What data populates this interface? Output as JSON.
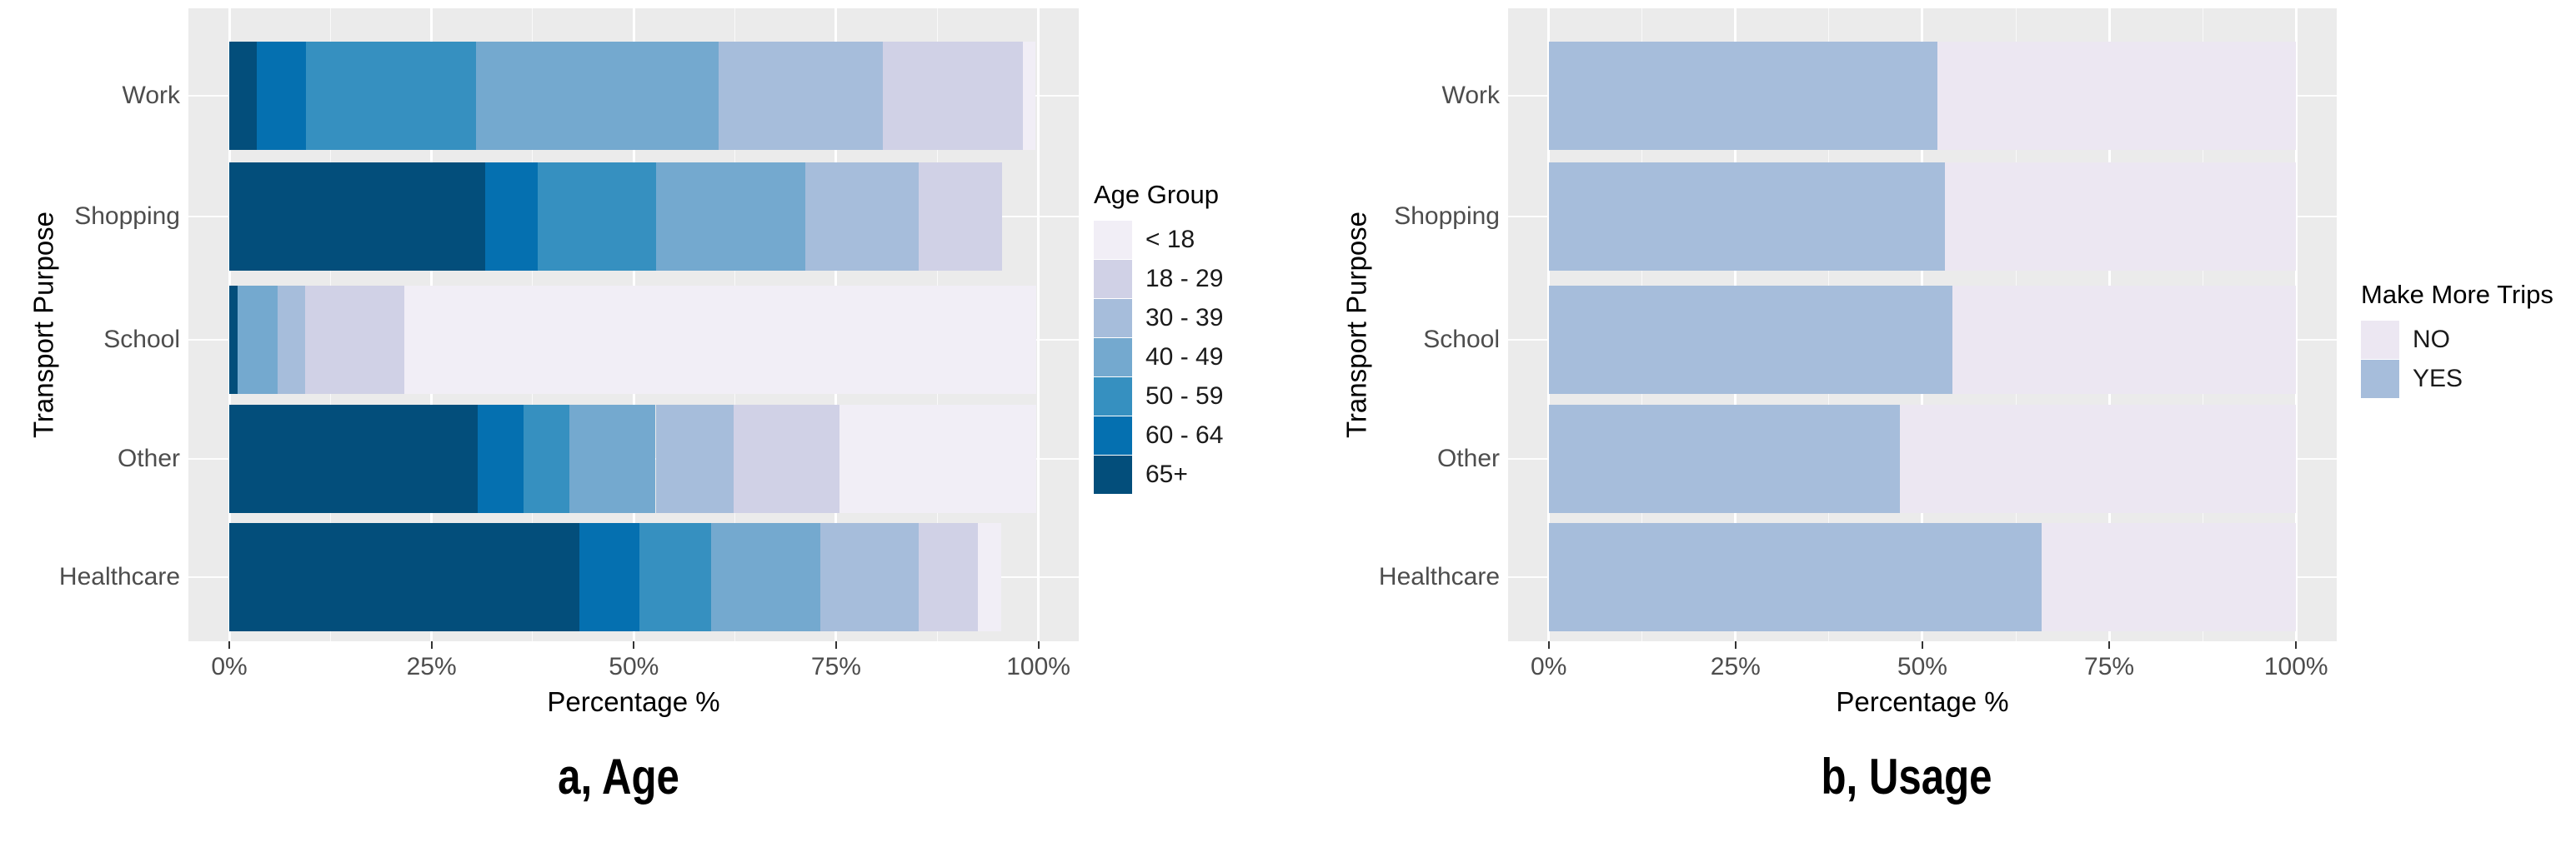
{
  "figure": {
    "captions": {
      "a": "a, Age",
      "b": "b, Usage"
    }
  },
  "chart_data": [
    {
      "id": "age",
      "type": "bar",
      "subtype": "stacked-horizontal",
      "caption": "a, Age",
      "xlabel": "Percentage %",
      "ylabel": "Transport Purpose",
      "xlim": [
        0,
        100
      ],
      "x_ticks": [
        {
          "value": 0,
          "label": "0%"
        },
        {
          "value": 25,
          "label": "25%"
        },
        {
          "value": 50,
          "label": "50%"
        },
        {
          "value": 75,
          "label": "75%"
        },
        {
          "value": 100,
          "label": "100%"
        }
      ],
      "grid": true,
      "categories": [
        "Work",
        "Shopping",
        "School",
        "Other",
        "Healthcare"
      ],
      "series": [
        {
          "name": "65+",
          "color": "#034E7B",
          "values": [
            3.4,
            31.6,
            1.0,
            30.7,
            43.3
          ]
        },
        {
          "name": "60 - 64",
          "color": "#0570B0",
          "values": [
            6.1,
            6.5,
            0.0,
            5.7,
            7.4
          ]
        },
        {
          "name": "50 - 59",
          "color": "#3690C0",
          "values": [
            21.0,
            14.6,
            0.0,
            5.6,
            8.8
          ]
        },
        {
          "name": "40 - 49",
          "color": "#74A9CF",
          "values": [
            30.0,
            18.5,
            5.0,
            10.7,
            13.5
          ]
        },
        {
          "name": "30 - 39",
          "color": "#A6BDDB",
          "values": [
            20.3,
            14.0,
            3.4,
            9.6,
            12.2
          ]
        },
        {
          "name": "18 - 29",
          "color": "#D0D1E6",
          "values": [
            17.3,
            10.3,
            12.2,
            13.1,
            7.3
          ]
        },
        {
          "name": "< 18",
          "color": "#F1EEF6",
          "values": [
            1.5,
            0.0,
            78.1,
            24.3,
            2.9
          ]
        }
      ],
      "legend": {
        "title": "Age Group",
        "position": "right",
        "entries": [
          {
            "label": "< 18",
            "color": "#F1EEF6"
          },
          {
            "label": "18 - 29",
            "color": "#D0D1E6"
          },
          {
            "label": "30 - 39",
            "color": "#A6BDDB"
          },
          {
            "label": "40 - 49",
            "color": "#74A9CF"
          },
          {
            "label": "50 - 59",
            "color": "#3690C0"
          },
          {
            "label": "60 - 64",
            "color": "#0570B0"
          },
          {
            "label": "65+",
            "color": "#034E7B"
          }
        ]
      }
    },
    {
      "id": "usage",
      "type": "bar",
      "subtype": "stacked-horizontal",
      "caption": "b, Usage",
      "xlabel": "Percentage %",
      "ylabel": "Transport Purpose",
      "xlim": [
        0,
        100
      ],
      "x_ticks": [
        {
          "value": 0,
          "label": "0%"
        },
        {
          "value": 25,
          "label": "25%"
        },
        {
          "value": 50,
          "label": "50%"
        },
        {
          "value": 75,
          "label": "75%"
        },
        {
          "value": 100,
          "label": "100%"
        }
      ],
      "grid": true,
      "categories": [
        "Work",
        "Shopping",
        "School",
        "Other",
        "Healthcare"
      ],
      "series": [
        {
          "name": "YES",
          "color": "#A6BDDB",
          "values": [
            52,
            53,
            54,
            47,
            66
          ]
        },
        {
          "name": "NO",
          "color": "#ECE7F2",
          "values": [
            48,
            47,
            46,
            53,
            34
          ]
        }
      ],
      "legend": {
        "title": "Make More Trips",
        "position": "right",
        "entries": [
          {
            "label": "NO",
            "color": "#ECE7F2"
          },
          {
            "label": "YES",
            "color": "#A6BDDB"
          }
        ]
      }
    }
  ],
  "colors": {
    "panel_background": "#EBEBEB",
    "gridline": "#FFFFFF",
    "axis_text": "#4D4D4D",
    "axis_title": "#000000"
  }
}
